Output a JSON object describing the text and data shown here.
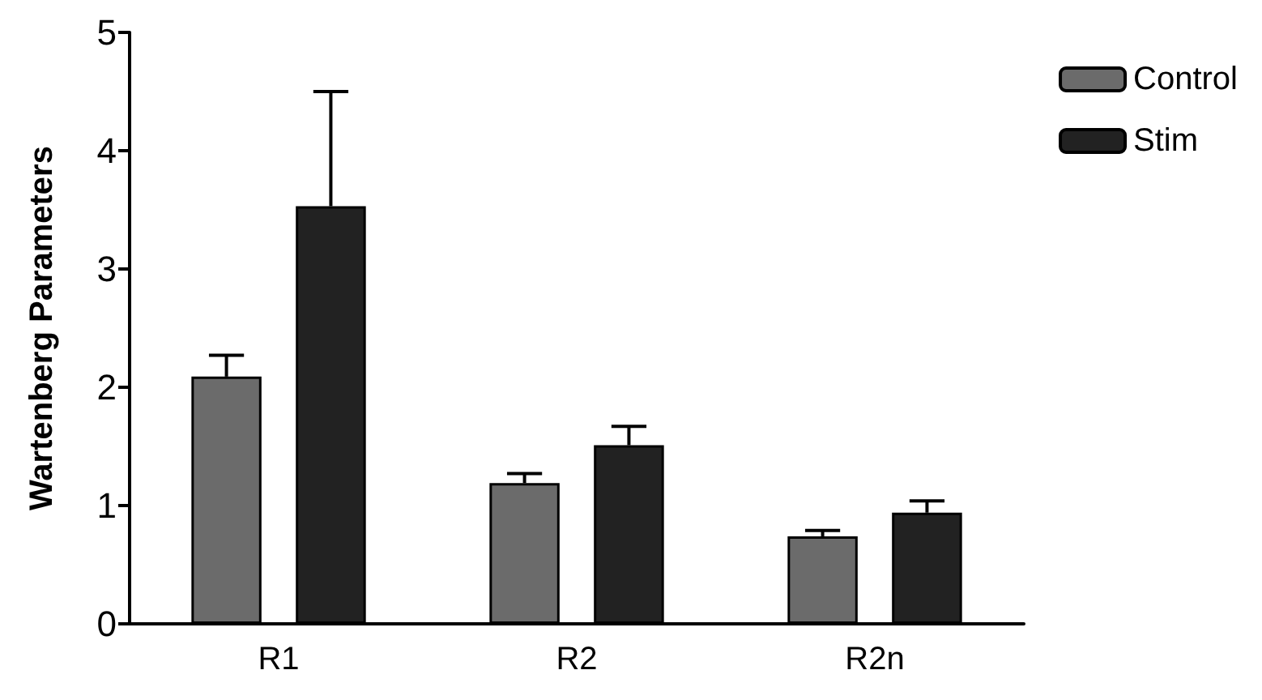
{
  "chart_data": {
    "type": "bar",
    "ylabel": "Wartenberg Parameters",
    "categories": [
      "R1",
      "R2",
      "R2n"
    ],
    "series": [
      {
        "name": "Control",
        "color": "#6b6b6b",
        "values": [
          2.09,
          1.19,
          0.74
        ],
        "errors": [
          [
            2.09,
            2.27
          ],
          [
            1.19,
            1.27
          ],
          [
            0.74,
            0.79
          ]
        ]
      },
      {
        "name": "Stim",
        "color": "#222222",
        "values": [
          3.53,
          1.51,
          0.94
        ],
        "errors": [
          [
            3.53,
            4.5
          ],
          [
            1.51,
            1.67
          ],
          [
            0.94,
            1.04
          ]
        ]
      }
    ],
    "ylim": [
      0,
      5
    ],
    "yticks": [
      0,
      1,
      2,
      3,
      4,
      5
    ],
    "grid": false,
    "legend": "top right"
  }
}
